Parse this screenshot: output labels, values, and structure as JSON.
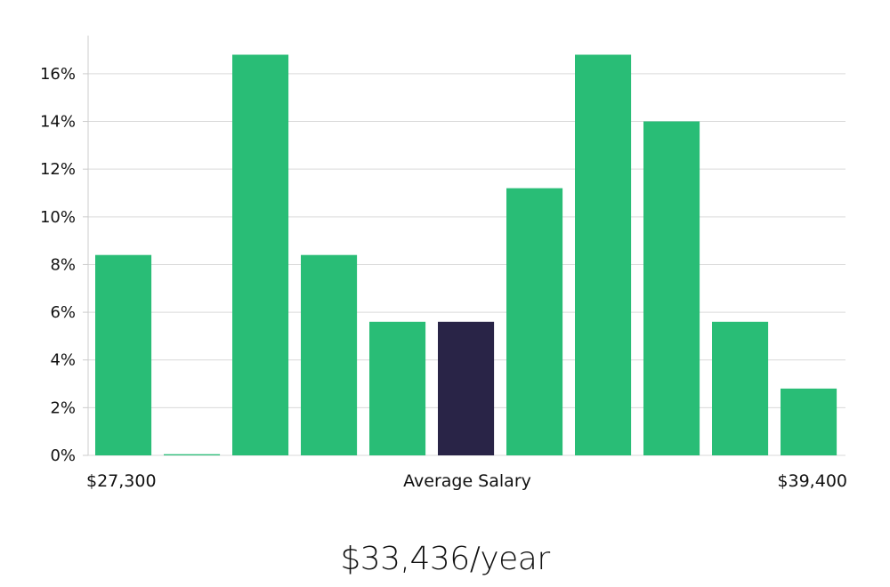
{
  "chart_data": {
    "type": "bar",
    "title": "",
    "ylabel": "",
    "xlabel": "Average Salary",
    "x_min_label": "$27,300",
    "x_max_label": "$39,400",
    "ylim": [
      0,
      17.6
    ],
    "yticks": [
      0,
      2,
      4,
      6,
      8,
      10,
      12,
      14,
      16
    ],
    "ytick_labels": [
      "0%",
      "2%",
      "4%",
      "6%",
      "8%",
      "10%",
      "12%",
      "14%",
      "16%"
    ],
    "values": [
      8.4,
      0.05,
      16.8,
      8.4,
      5.6,
      5.6,
      11.2,
      16.8,
      14.0,
      5.6,
      2.8
    ],
    "highlight_index": 5,
    "colors": {
      "bar": "#29bd76",
      "highlight": "#292447",
      "grid": "#d9d9d9",
      "axis": "#cccccc"
    }
  },
  "salary_text": "$33,436/year"
}
